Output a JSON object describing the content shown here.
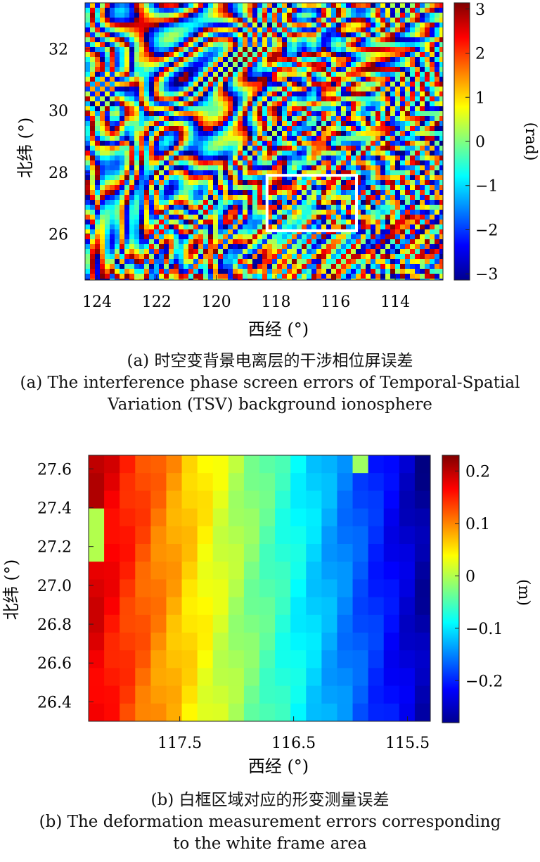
{
  "chart_data": [
    {
      "type": "heatmap",
      "subfigure": "a",
      "xlabel": "西经 (°)",
      "ylabel": "北纬 (°)",
      "colorbar_label": "(rad)",
      "xlim": [
        124.4,
        112.4
      ],
      "ylim": [
        24.5,
        33.5
      ],
      "xticks": [
        "124",
        "122",
        "120",
        "118",
        "116",
        "114"
      ],
      "xtick_values": [
        124,
        122,
        120,
        118,
        116,
        114
      ],
      "yticks": [
        "26",
        "28",
        "30",
        "32"
      ],
      "ytick_values": [
        26,
        28,
        30,
        32
      ],
      "colorbar_ticks": [
        "3",
        "2",
        "1",
        "0",
        "−1",
        "−2",
        "−3"
      ],
      "colorbar_tick_values": [
        3,
        2,
        1,
        0,
        -1,
        -2,
        -3
      ],
      "colorbar_range": [
        -3.14,
        3.14
      ],
      "colormap": "jet",
      "highlight_box": {
        "x": [
          118.3,
          115.3
        ],
        "y": [
          26.1,
          27.9
        ],
        "color": "#ffffff"
      }
    },
    {
      "type": "heatmap",
      "subfigure": "b",
      "xlabel": "西经 (°)",
      "ylabel": "北纬 (°)",
      "colorbar_label": "(m)",
      "xlim": [
        118.3,
        115.3
      ],
      "ylim": [
        26.3,
        27.67
      ],
      "xticks": [
        "117.5",
        "116.5",
        "115.5"
      ],
      "xtick_values": [
        117.5,
        116.5,
        115.5
      ],
      "yticks": [
        "26.4",
        "26.6",
        "26.8",
        "27.0",
        "27.2",
        "27.4",
        "27.6"
      ],
      "ytick_values": [
        26.4,
        26.6,
        26.8,
        27.0,
        27.2,
        27.4,
        27.6
      ],
      "colorbar_ticks": [
        "0.2",
        "0.1",
        "0",
        "−0.1",
        "−0.2"
      ],
      "colorbar_tick_values": [
        0.2,
        0.1,
        0,
        -0.1,
        -0.2
      ],
      "colorbar_range": [
        -0.28,
        0.23
      ],
      "colormap": "jet",
      "field_trend": "error decreases from about 0.2 m at 118.3°W to about −0.25 m at 115.3°W"
    }
  ],
  "captions": {
    "a_zh": "(a) 时空变背景电离层的干涉相位屏误差",
    "a_en_1": "(a) The interference phase screen errors of Temporal-Spatial",
    "a_en_2": "Variation (TSV) background ionosphere",
    "b_zh": "(b) 白框区域对应的形变测量误差",
    "b_en_1": "(b) The deformation measurement errors corresponding",
    "b_en_2": "to the white frame area"
  }
}
